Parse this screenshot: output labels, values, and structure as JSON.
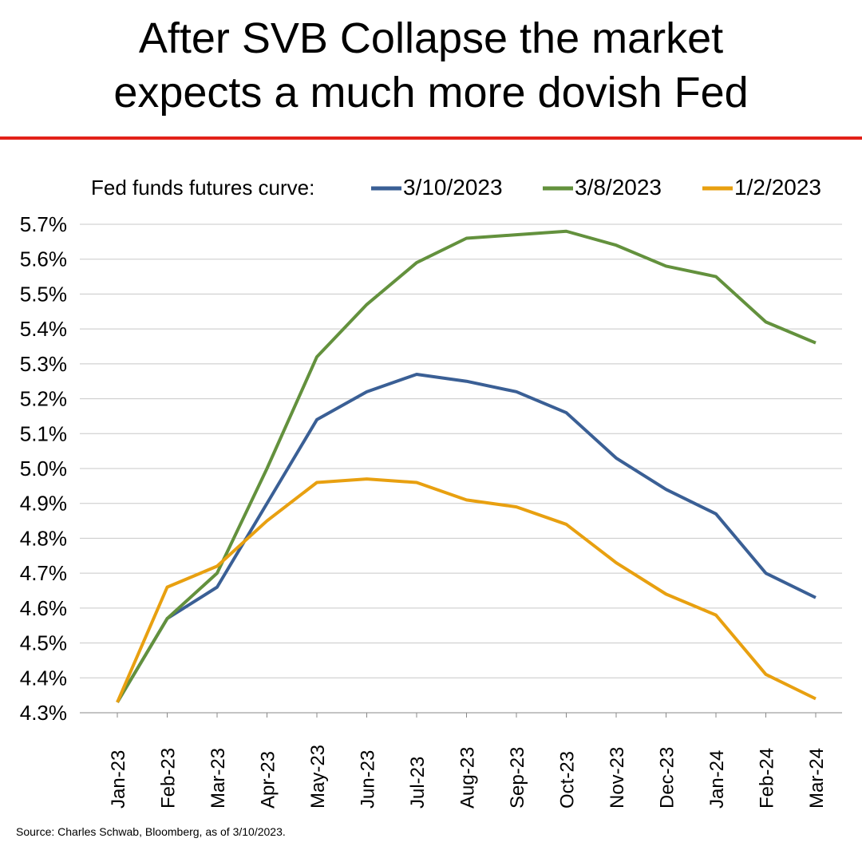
{
  "title_lines": [
    "After SVB Collapse the market",
    "expects a much more dovish Fed"
  ],
  "source": "Source: Charles Schwab, Bloomberg, as of 3/10/2023.",
  "colors": {
    "accent_rule": "#e32119",
    "blue": "#3a5f95",
    "green": "#63913d",
    "orange": "#e8a010"
  },
  "chart_data": {
    "type": "line",
    "title": "",
    "legend_title": "Fed funds futures curve:",
    "legend_position": "top",
    "xlabel": "",
    "ylabel": "",
    "ylim": [
      4.3,
      5.7
    ],
    "yticks": [
      4.3,
      4.4,
      4.5,
      4.6,
      4.7,
      4.8,
      4.9,
      5.0,
      5.1,
      5.2,
      5.3,
      5.4,
      5.5,
      5.6,
      5.7
    ],
    "ytick_labels": [
      "4.3%",
      "4.4%",
      "4.5%",
      "4.6%",
      "4.7%",
      "4.8%",
      "4.9%",
      "5.0%",
      "5.1%",
      "5.2%",
      "5.3%",
      "5.4%",
      "5.5%",
      "5.6%",
      "5.7%"
    ],
    "grid": true,
    "categories": [
      "Jan-23",
      "Feb-23",
      "Mar-23",
      "Apr-23",
      "May-23",
      "Jun-23",
      "Jul-23",
      "Aug-23",
      "Sep-23",
      "Oct-23",
      "Nov-23",
      "Dec-23",
      "Jan-24",
      "Feb-24",
      "Mar-24"
    ],
    "series": [
      {
        "name": "3/10/2023",
        "color": "#3a5f95",
        "values": [
          4.33,
          4.57,
          4.66,
          4.9,
          5.14,
          5.22,
          5.27,
          5.25,
          5.22,
          5.16,
          5.03,
          4.94,
          4.87,
          4.7,
          4.63
        ]
      },
      {
        "name": "3/8/2023",
        "color": "#63913d",
        "values": [
          4.33,
          4.57,
          4.7,
          5.0,
          5.32,
          5.47,
          5.59,
          5.66,
          5.67,
          5.68,
          5.64,
          5.58,
          5.55,
          5.42,
          5.36
        ]
      },
      {
        "name": "1/2/2023",
        "color": "#e8a010",
        "values": [
          4.33,
          4.66,
          4.72,
          4.85,
          4.96,
          4.97,
          4.96,
          4.91,
          4.89,
          4.84,
          4.73,
          4.64,
          4.58,
          4.41,
          4.34
        ]
      }
    ]
  }
}
